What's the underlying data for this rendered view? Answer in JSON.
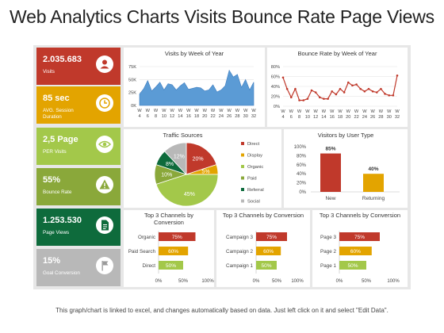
{
  "page": {
    "title": "Web Analytics Charts Visits Bounce Rate Page Views",
    "footer": "This graph/chart is linked to excel, and changes automatically based on data. Just left click on it and select \"Edit Data\"."
  },
  "kpis": [
    {
      "value": "2.035.683",
      "label": "Visits",
      "color": "#c0392b",
      "icon": "user-icon"
    },
    {
      "value": "85 sec",
      "label": "AVG. Session Duration",
      "color": "#e3a400",
      "icon": "clock-icon"
    },
    {
      "value": "2,5 Page",
      "label": "PER Visits",
      "color": "#a3c84a",
      "icon": "eye-icon"
    },
    {
      "value": "55%",
      "label": "Bounce Rate",
      "color": "#8aa83a",
      "icon": "warning-icon"
    },
    {
      "value": "1.253.530",
      "label": "Page Views",
      "color": "#0e6b3c",
      "icon": "document-icon"
    },
    {
      "value": "15%",
      "label": "Goal Conversion",
      "color": "#b8b8b8",
      "icon": "flag-icon"
    }
  ],
  "colors": {
    "red": "#c0392b",
    "yellow": "#e3a400",
    "green": "#a3c84a",
    "dark_green": "#0e6b3c",
    "blue": "#5b9bd5"
  },
  "chart_data": [
    {
      "type": "area",
      "title": "Visits by Week of Year",
      "x": [
        "W 4",
        "W 5",
        "W 6",
        "W 7",
        "W 8",
        "W 9",
        "W 10",
        "W 11",
        "W 12",
        "W 13",
        "W 14",
        "W 15",
        "W 16",
        "W 17",
        "W 18",
        "W 19",
        "W 20",
        "W 21",
        "W 22",
        "W 23",
        "W 24",
        "W 25",
        "W 26",
        "W 27",
        "W 28",
        "W 29",
        "W 30",
        "W 31",
        "W 32"
      ],
      "x_tick_labels": [
        "W\n4",
        "W\n6",
        "W\n8",
        "W\n10",
        "W\n12",
        "W\n14",
        "W\n16",
        "W\n18",
        "W\n20",
        "W\n22",
        "W\n24",
        "W\n26",
        "W\n28",
        "W\n30",
        "W\n32"
      ],
      "values": [
        22000,
        32000,
        48000,
        28000,
        36000,
        45000,
        30000,
        42000,
        40000,
        30000,
        38000,
        44000,
        31000,
        33000,
        35000,
        34000,
        28000,
        30000,
        40000,
        26000,
        30000,
        38000,
        68000,
        55000,
        60000,
        35000,
        50000,
        30000,
        45000
      ],
      "y_ticks": [
        "0K",
        "25K",
        "50K",
        "75K"
      ],
      "ylim": [
        0,
        75000
      ]
    },
    {
      "type": "line",
      "title": "Bounce Rate by Week of Year",
      "x": [
        "W 4",
        "W 5",
        "W 6",
        "W 7",
        "W 8",
        "W 9",
        "W 10",
        "W 11",
        "W 12",
        "W 13",
        "W 14",
        "W 15",
        "W 16",
        "W 17",
        "W 18",
        "W 19",
        "W 20",
        "W 21",
        "W 22",
        "W 23",
        "W 24",
        "W 25",
        "W 26",
        "W 27",
        "W 28",
        "W 29",
        "W 30",
        "W 31",
        "W 32"
      ],
      "x_tick_labels": [
        "W\n4",
        "W\n6",
        "W\n8",
        "W\n10",
        "W\n12",
        "W\n14",
        "W\n16",
        "W\n18",
        "W\n20",
        "W\n22",
        "W\n24",
        "W\n26",
        "W\n28",
        "W\n30",
        "W\n32"
      ],
      "values": [
        58,
        35,
        18,
        35,
        12,
        12,
        15,
        32,
        28,
        18,
        15,
        15,
        30,
        24,
        35,
        28,
        48,
        42,
        44,
        35,
        30,
        35,
        30,
        28,
        35,
        25,
        22,
        22,
        62
      ],
      "y_ticks": [
        "0%",
        "20%",
        "40%",
        "60%",
        "80%"
      ],
      "ylim": [
        0,
        80
      ]
    },
    {
      "type": "pie",
      "title": "Traffic Sources",
      "slices": [
        {
          "name": "Direct",
          "value": 20,
          "color": "#c0392b"
        },
        {
          "name": "Display",
          "value": 5,
          "color": "#e3a400"
        },
        {
          "name": "Organic",
          "value": 45,
          "color": "#a3c84a"
        },
        {
          "name": "Paid",
          "value": 10,
          "color": "#8aa83a"
        },
        {
          "name": "Referral",
          "value": 8,
          "color": "#0e6b3c"
        },
        {
          "name": "Social",
          "value": 12,
          "color": "#b8b8b8"
        }
      ],
      "data_labels": [
        "20%",
        "5%",
        "45%",
        "10%",
        "8%",
        "12%"
      ],
      "legend_position": "right"
    },
    {
      "type": "bar",
      "title": "Visitors by User Type",
      "categories": [
        "New",
        "Returning"
      ],
      "values": [
        85,
        40
      ],
      "data_labels": [
        "85%",
        "40%"
      ],
      "colors": [
        "#c0392b",
        "#e3a400"
      ],
      "y_ticks": [
        "0%",
        "20%",
        "40%",
        "60%",
        "80%",
        "100%"
      ],
      "ylim": [
        0,
        100
      ]
    },
    {
      "type": "bar",
      "orientation": "horizontal",
      "title": "Top 3 Channels by Conversion",
      "categories": [
        "Organic",
        "Paid Search",
        "Direct"
      ],
      "values": [
        75,
        60,
        50
      ],
      "data_labels": [
        "75%",
        "60%",
        "50%"
      ],
      "colors": [
        "#c0392b",
        "#e3a400",
        "#a3c84a"
      ],
      "x_ticks": [
        "0%",
        "50%",
        "100%"
      ],
      "xlim": [
        0,
        100
      ]
    },
    {
      "type": "bar",
      "orientation": "horizontal",
      "title": "Top 3 Channels by Conversion",
      "categories": [
        "Campaign 3",
        "Campaign 2",
        "Campaign 1"
      ],
      "values": [
        75,
        60,
        50
      ],
      "data_labels": [
        "75%",
        "60%",
        "50%"
      ],
      "colors": [
        "#c0392b",
        "#e3a400",
        "#a3c84a"
      ],
      "x_ticks": [
        "0%",
        "50%",
        "100%"
      ],
      "xlim": [
        0,
        100
      ]
    },
    {
      "type": "bar",
      "orientation": "horizontal",
      "title": "Top 3 Channels by Conversion",
      "categories": [
        "Page 3",
        "Page 2",
        "Page 1"
      ],
      "values": [
        75,
        60,
        50
      ],
      "data_labels": [
        "75%",
        "60%",
        "50%"
      ],
      "colors": [
        "#c0392b",
        "#e3a400",
        "#a3c84a"
      ],
      "x_ticks": [
        "0%",
        "50%",
        "100%"
      ],
      "xlim": [
        0,
        100
      ]
    }
  ]
}
